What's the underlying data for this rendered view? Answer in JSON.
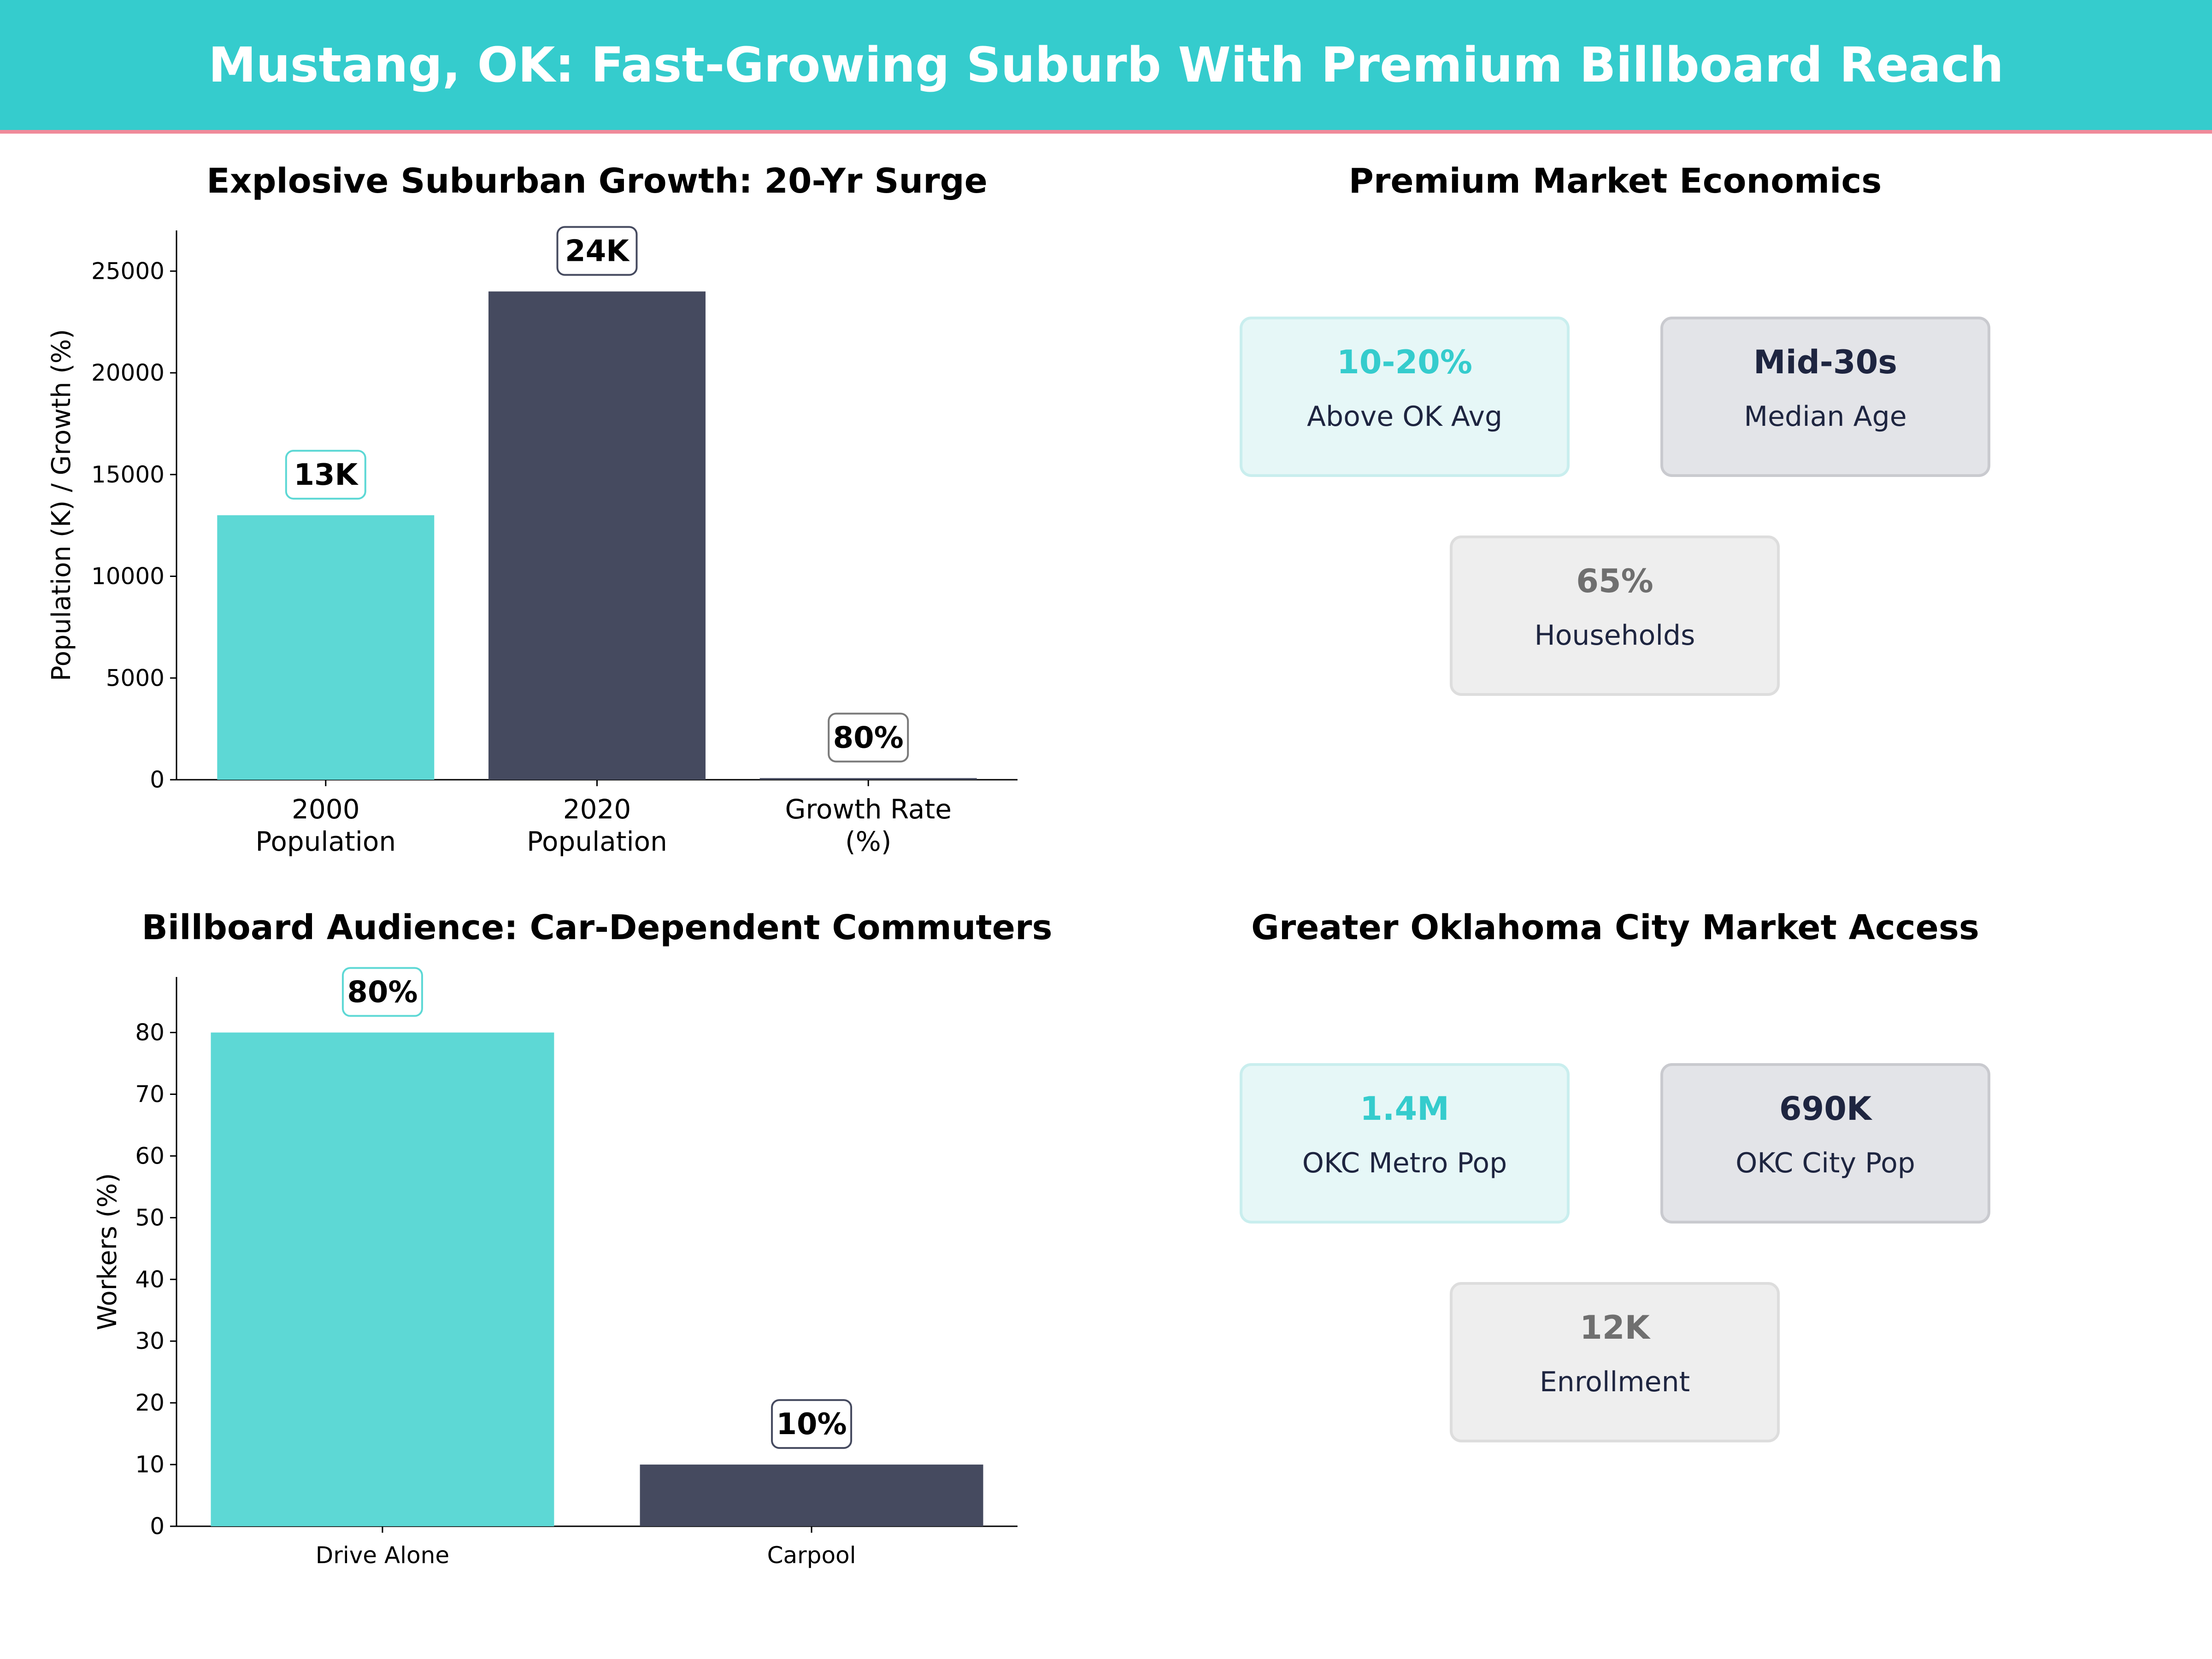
{
  "header": {
    "title": "Mustang, OK: Fast-Growing Suburb With Premium Billboard Reach"
  },
  "colors": {
    "teal": "#5dd8d5",
    "navy": "#454a5f",
    "accent": "#35cccd",
    "grey_text": "#6f6f6f",
    "dark_text": "#1e2540"
  },
  "chart_data": [
    {
      "type": "bar",
      "title": "Explosive Suburban Growth: 20-Yr Surge",
      "ylabel": "Population (K) / Growth (%)",
      "ylim": [
        0,
        27000
      ],
      "yticks": [
        0,
        5000,
        10000,
        15000,
        20000,
        25000
      ],
      "categories": [
        [
          "2000",
          "Population"
        ],
        [
          "2020",
          "Population"
        ],
        [
          "Growth Rate",
          "(%)"
        ]
      ],
      "values": [
        13000,
        24000,
        80
      ],
      "data_labels": [
        "13K",
        "24K",
        "80%"
      ],
      "colors": [
        "#5dd8d5",
        "#454a5f",
        "#454a5f"
      ],
      "label_border_colors": [
        "#5dd8d5",
        "#454a5f",
        "#7a7a7a"
      ]
    },
    {
      "type": "bar",
      "title": "Billboard Audience: Car-Dependent Commuters",
      "ylabel": "Workers (%)",
      "ylim": [
        0,
        89
      ],
      "yticks": [
        0,
        10,
        20,
        30,
        40,
        50,
        60,
        70,
        80
      ],
      "categories": [
        [
          "Drive Alone"
        ],
        [
          "Carpool"
        ]
      ],
      "values": [
        80,
        10
      ],
      "data_labels": [
        "80%",
        "10%"
      ],
      "colors": [
        "#5dd8d5",
        "#454a5f"
      ],
      "label_border_colors": [
        "#5dd8d5",
        "#454a5f"
      ]
    }
  ],
  "panels": {
    "economics": {
      "title": "Premium Market Economics",
      "cards": [
        {
          "value": "10-20%",
          "label": "Above OK Avg",
          "style": "teal"
        },
        {
          "value": "Mid-30s",
          "label": "Median Age",
          "style": "navy"
        },
        {
          "value": "65%",
          "label": "Households",
          "style": "grey"
        }
      ]
    },
    "market": {
      "title": "Greater Oklahoma City Market Access",
      "cards": [
        {
          "value": "1.4M",
          "label": "OKC Metro Pop",
          "style": "teal"
        },
        {
          "value": "690K",
          "label": "OKC City Pop",
          "style": "navy"
        },
        {
          "value": "12K",
          "label": "Enrollment",
          "style": "grey"
        }
      ]
    }
  }
}
